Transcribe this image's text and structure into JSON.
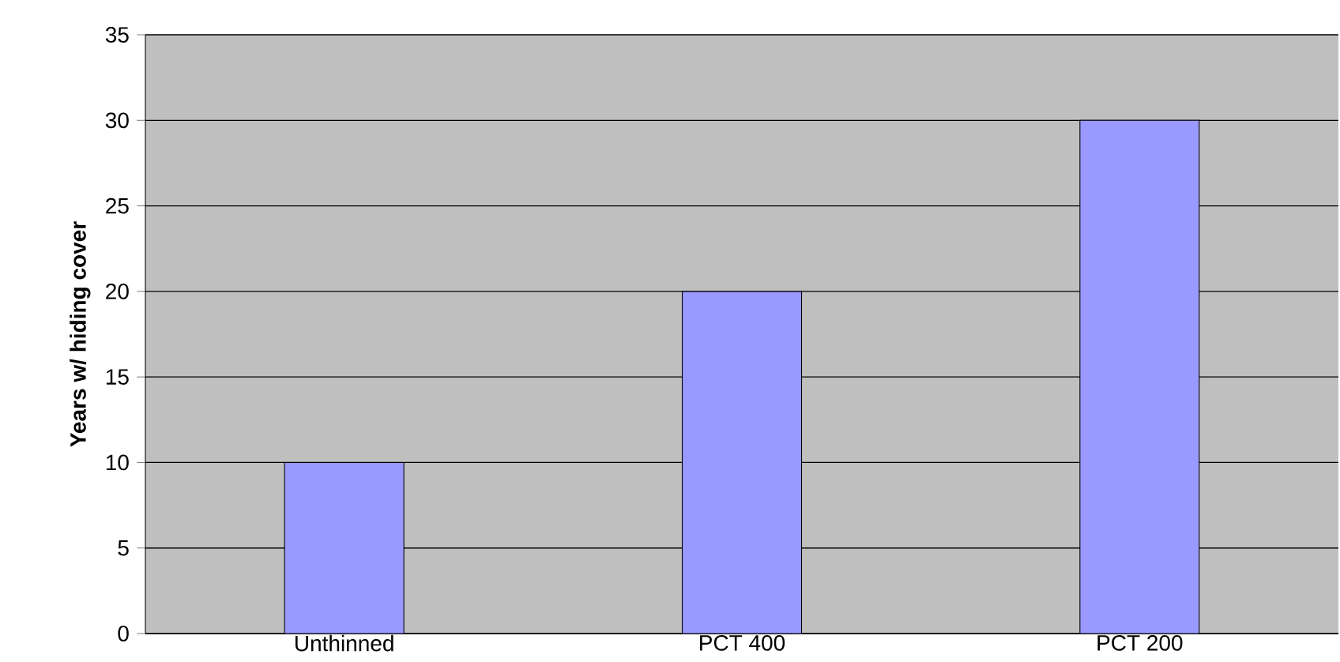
{
  "chart_data": {
    "type": "bar",
    "ylabel": "Years w/ hiding cover",
    "categories": [
      "Unthinned",
      "PCT 400",
      "PCT 200"
    ],
    "values": [
      10,
      20,
      30
    ],
    "color": "#9999ff",
    "ylim": [
      0,
      35
    ],
    "yticks": [
      0,
      5,
      10,
      15,
      20,
      25,
      30,
      35
    ],
    "grid": "y"
  }
}
